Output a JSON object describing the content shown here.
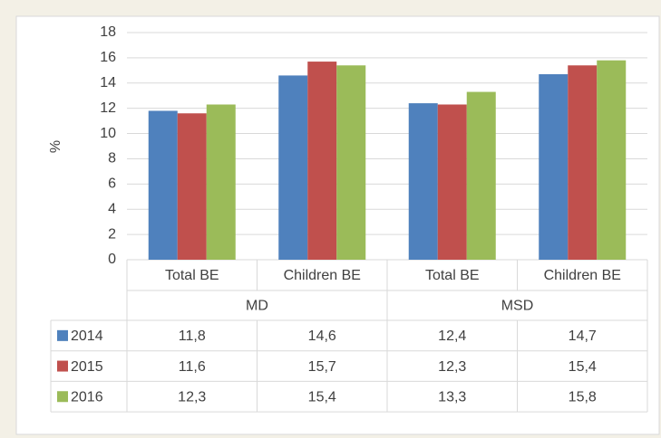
{
  "chart_data": {
    "type": "bar",
    "ylabel": "%",
    "categories": [
      "Total BE",
      "Children BE",
      "Total BE",
      "Children BE"
    ],
    "groups": [
      "MD",
      "MSD"
    ],
    "series": [
      {
        "name": "2014",
        "color": "#4f81bd",
        "values": [
          11.8,
          14.6,
          12.4,
          14.7
        ],
        "value_labels": [
          "11,8",
          "14,6",
          "12,4",
          "14,7"
        ]
      },
      {
        "name": "2015",
        "color": "#c0504d",
        "values": [
          11.6,
          15.7,
          12.3,
          15.4
        ],
        "value_labels": [
          "11,6",
          "15,7",
          "12,3",
          "15,4"
        ]
      },
      {
        "name": "2016",
        "color": "#9bbb59",
        "values": [
          12.3,
          15.4,
          13.3,
          15.8
        ],
        "value_labels": [
          "12,3",
          "15,4",
          "13,3",
          "15,8"
        ]
      }
    ],
    "ylim": [
      0,
      18
    ],
    "yticks": [
      0,
      2,
      4,
      6,
      8,
      10,
      12,
      14,
      16,
      18
    ],
    "grid": true
  }
}
